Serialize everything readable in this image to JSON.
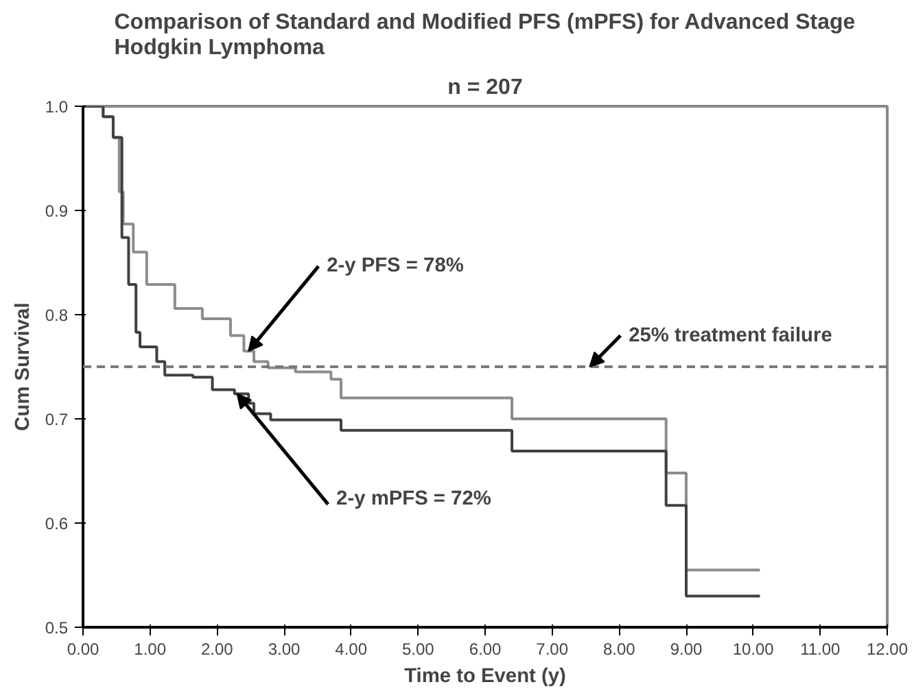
{
  "chart_data": {
    "type": "step",
    "title": "Comparison of Standard and Modified PFS (mPFS) for Advanced Stage Hodgkin Lymphoma",
    "subtitle": "n = 207",
    "xlabel": "Time to Event (y)",
    "ylabel": "Cum Survival",
    "series": [
      {
        "color": "#8c8c8c",
        "x": [
          0,
          0.3,
          0.45,
          0.54,
          0.6,
          0.75,
          0.95,
          1.37,
          1.78,
          2.2,
          2.4,
          2.55,
          2.76,
          3.17,
          3.7,
          3.85,
          6.4,
          8.7,
          9.0,
          10.1
        ],
        "values": [
          1.0,
          0.99,
          0.97,
          0.918,
          0.887,
          0.86,
          0.829,
          0.806,
          0.796,
          0.78,
          0.765,
          0.755,
          0.749,
          0.745,
          0.738,
          0.72,
          0.7,
          0.648,
          0.555,
          0.555
        ]
      },
      {
        "color": "#404040",
        "x": [
          0,
          0.3,
          0.45,
          0.58,
          0.68,
          0.79,
          0.85,
          1.1,
          1.22,
          1.64,
          1.93,
          2.26,
          2.47,
          2.55,
          2.8,
          3.85,
          6.4,
          8.7,
          9.0,
          10.1
        ],
        "values": [
          1.0,
          0.99,
          0.97,
          0.874,
          0.829,
          0.783,
          0.769,
          0.755,
          0.742,
          0.74,
          0.728,
          0.724,
          0.715,
          0.705,
          0.699,
          0.689,
          0.669,
          0.617,
          0.53,
          0.53
        ]
      }
    ],
    "xlim": [
      0,
      12
    ],
    "ylim": [
      0.5,
      1.0
    ],
    "xticks": [
      {
        "value": 0,
        "label": "0.00"
      },
      {
        "value": 1,
        "label": "1.00"
      },
      {
        "value": 2,
        "label": "2.00"
      },
      {
        "value": 3,
        "label": "3.00"
      },
      {
        "value": 4,
        "label": "4.00"
      },
      {
        "value": 5,
        "label": "5.00"
      },
      {
        "value": 6,
        "label": "6.00"
      },
      {
        "value": 7,
        "label": "7.00"
      },
      {
        "value": 8,
        "label": "8.00"
      },
      {
        "value": 9,
        "label": "9.00"
      },
      {
        "value": 10,
        "label": "10.00"
      },
      {
        "value": 11,
        "label": "11.00"
      },
      {
        "value": 12,
        "label": "12.00"
      }
    ],
    "yticks": [
      0.5,
      0.6,
      0.7,
      0.8,
      0.9,
      {
        "value": 1.0,
        "label": "1.0"
      }
    ],
    "ref_lines": [
      {
        "axis": "y",
        "value": 0.75,
        "label": "25% treatment failure",
        "color": "#7a7a7a",
        "line_style": "dashed"
      }
    ],
    "annotations": [
      {
        "text": "2-y PFS = 78%",
        "x": 2.47,
        "y": 0.765
      },
      {
        "text": "2-y mPFS = 72%",
        "x": 2.3,
        "y": 0.724
      }
    ],
    "grid": false
  }
}
